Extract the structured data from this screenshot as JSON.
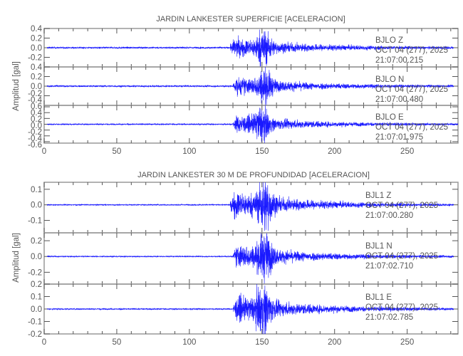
{
  "chart_data": [
    {
      "type": "line",
      "title": "JARDIN LANKESTER SUPERFICIE [ACELERACION]",
      "ylabel": "Amplitud [gal]",
      "xlim": [
        0,
        285
      ],
      "xticks": [
        0,
        50,
        100,
        150,
        200,
        250
      ],
      "grid": false,
      "line_color": "#0000ff",
      "traces": [
        {
          "station": "BJLO",
          "component": "Z",
          "date": "OCT 04 (277), 2025",
          "time": "21:07:00.215",
          "ylim": [
            -0.4,
            0.4
          ],
          "yticks": [
            "0.4",
            "0.2",
            "0.0",
            "-0.2"
          ],
          "noise": 0.02,
          "onset": 128,
          "peak_time": 151,
          "peak_amplitude": 0.35,
          "end": 282
        },
        {
          "station": "BJLO",
          "component": "N",
          "date": "OCT 04 (277), 2025",
          "time": "21:07:00.480",
          "ylim": [
            -0.4,
            0.4
          ],
          "yticks": [
            "0.4",
            "0.2",
            "0.0",
            "-0.2",
            "-0.4"
          ],
          "noise": 0.02,
          "onset": 130,
          "peak_time": 152,
          "peak_amplitude": 0.33,
          "end": 282
        },
        {
          "station": "BJLO",
          "component": "E",
          "date": "OCT 04 (277), 2025",
          "time": "21:07:01.975",
          "ylim": [
            -0.65,
            0.65
          ],
          "yticks": [
            "0.6",
            "0.4",
            "0.2",
            "0.0",
            "-0.2",
            "-0.4",
            "-0.6"
          ],
          "noise": 0.025,
          "onset": 130,
          "peak_time": 150,
          "peak_amplitude": 0.55,
          "end": 285
        }
      ]
    },
    {
      "type": "line",
      "title": "JARDIN LANKESTER 30 M DE PROFUNDIDAD [ACELERACION]",
      "ylabel": "Amplitud [gal]",
      "xlim": [
        0,
        285
      ],
      "xticks": [
        0,
        50,
        100,
        150,
        200,
        250
      ],
      "grid": false,
      "line_color": "#0000ff",
      "traces": [
        {
          "station": "BJL1",
          "component": "Z",
          "date": "OCT 04 (277), 2025",
          "time": "21:07:00.280",
          "ylim": [
            -0.18,
            0.145
          ],
          "yticks": [
            "0.1",
            "0.0",
            "-0.1"
          ],
          "noise": 0.004,
          "onset": 128,
          "peak_time": 152,
          "peak_amplitude": 0.16,
          "end": 282
        },
        {
          "station": "BJL1",
          "component": "N",
          "date": "OCT 04 (277), 2025",
          "time": "21:07:02.710",
          "ylim": [
            -0.35,
            0.3
          ],
          "yticks": [
            "0.2",
            "0.0",
            "-0.2"
          ],
          "noise": 0.008,
          "onset": 130,
          "peak_time": 152,
          "peak_amplitude": 0.28,
          "end": 282
        },
        {
          "station": "BJL1",
          "component": "E",
          "date": "OCT 04 (277), 2025",
          "time": "21:07:02.785",
          "ylim": [
            -0.2,
            0.2
          ],
          "yticks": [
            "0.2",
            "0.1",
            "0.0",
            "-0.1",
            "-0.2"
          ],
          "noise": 0.006,
          "onset": 130,
          "peak_time": 151,
          "peak_amplitude": 0.19,
          "end": 282
        }
      ]
    }
  ]
}
